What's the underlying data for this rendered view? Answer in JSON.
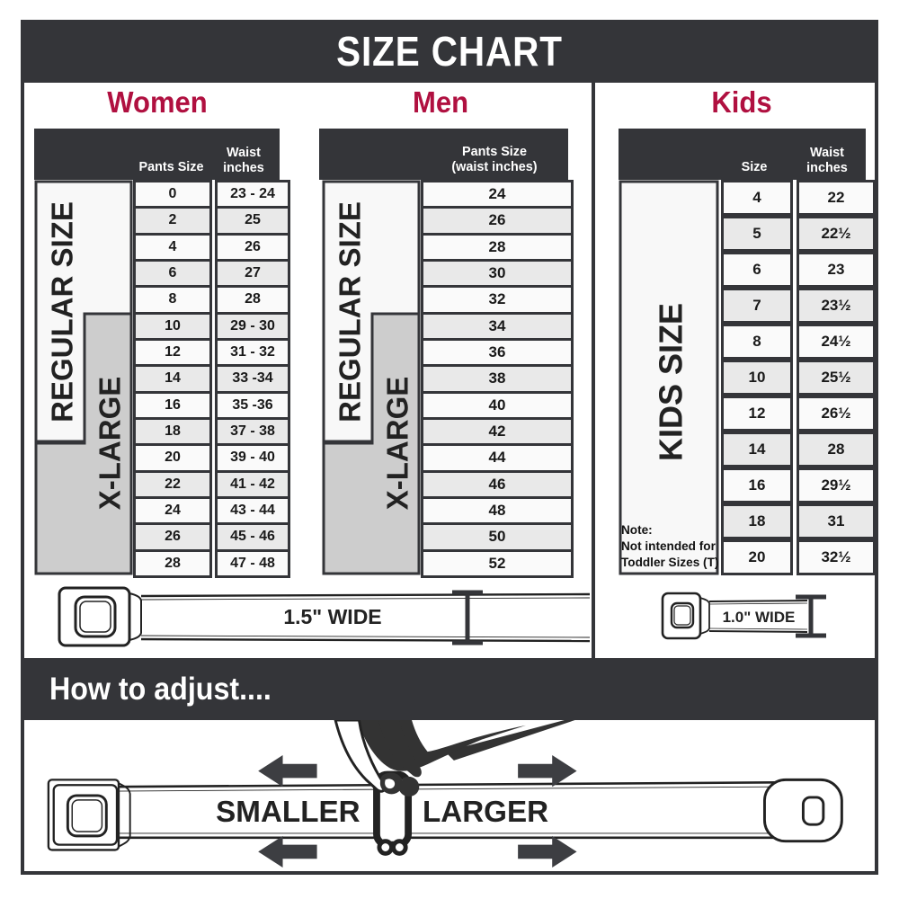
{
  "title": "SIZE CHART",
  "colors": {
    "dark_bar": "#343539",
    "heading_red": "#b01040",
    "xlarge_gray": "#cdcdcd",
    "regular_bg": "#f8f8f8",
    "row_alt": "#e9e9e9"
  },
  "women": {
    "heading": "Women",
    "regular_label": "REGULAR SIZE",
    "xlarge_label": "X-LARGE",
    "col1_header": "Pants Size",
    "col2_header_line1": "Waist",
    "col2_header_line2": "inches",
    "rows": [
      [
        "0",
        "23 - 24"
      ],
      [
        "2",
        "25"
      ],
      [
        "4",
        "26"
      ],
      [
        "6",
        "27"
      ],
      [
        "8",
        "28"
      ],
      [
        "10",
        "29 - 30"
      ],
      [
        "12",
        "31 - 32"
      ],
      [
        "14",
        "33 -34"
      ],
      [
        "16",
        "35 -36"
      ],
      [
        "18",
        "37 - 38"
      ],
      [
        "20",
        "39 - 40"
      ],
      [
        "22",
        "41 - 42"
      ],
      [
        "24",
        "43 - 44"
      ],
      [
        "26",
        "45 - 46"
      ],
      [
        "28",
        "47 - 48"
      ]
    ]
  },
  "men": {
    "heading": "Men",
    "regular_label": "REGULAR SIZE",
    "xlarge_label": "X-LARGE",
    "header_line1": "Pants Size",
    "header_line2": "(waist inches)",
    "rows": [
      [
        "24"
      ],
      [
        "26"
      ],
      [
        "28"
      ],
      [
        "30"
      ],
      [
        "32"
      ],
      [
        "34"
      ],
      [
        "36"
      ],
      [
        "38"
      ],
      [
        "40"
      ],
      [
        "42"
      ],
      [
        "44"
      ],
      [
        "46"
      ],
      [
        "48"
      ],
      [
        "50"
      ],
      [
        "52"
      ]
    ]
  },
  "kids": {
    "heading": "Kids",
    "size_label": "KIDS SIZE",
    "col1_header": "Size",
    "col2_header_line1": "Waist",
    "col2_header_line2": "inches",
    "note_line1": "Note:",
    "note_line2": "Not intended for",
    "note_line3": "Toddler Sizes (T)",
    "rows": [
      [
        "4",
        "22"
      ],
      [
        "5",
        "22½"
      ],
      [
        "6",
        "23"
      ],
      [
        "7",
        "23½"
      ],
      [
        "8",
        "24½"
      ],
      [
        "10",
        "25½"
      ],
      [
        "12",
        "26½"
      ],
      [
        "14",
        "28"
      ],
      [
        "16",
        "29½"
      ],
      [
        "18",
        "31"
      ],
      [
        "20",
        "32½"
      ]
    ]
  },
  "belts": {
    "adult_width": "1.5\" WIDE",
    "kids_width": "1.0\" WIDE"
  },
  "adjust": {
    "heading": "How to adjust....",
    "smaller": "SMALLER",
    "larger": "LARGER"
  },
  "chart_data": [
    {
      "type": "table",
      "title": "Women",
      "columns": [
        "Pants Size",
        "Waist inches"
      ],
      "rows": [
        [
          "0",
          "23 - 24"
        ],
        [
          "2",
          "25"
        ],
        [
          "4",
          "26"
        ],
        [
          "6",
          "27"
        ],
        [
          "8",
          "28"
        ],
        [
          "10",
          "29 - 30"
        ],
        [
          "12",
          "31 - 32"
        ],
        [
          "14",
          "33 -34"
        ],
        [
          "16",
          "35 -36"
        ],
        [
          "18",
          "37 - 38"
        ],
        [
          "20",
          "39 - 40"
        ],
        [
          "22",
          "41 - 42"
        ],
        [
          "24",
          "43 - 44"
        ],
        [
          "26",
          "45 - 46"
        ],
        [
          "28",
          "47 - 48"
        ]
      ],
      "groups": {
        "REGULAR SIZE": [
          "0",
          "2",
          "4",
          "6",
          "8",
          "10",
          "12",
          "14",
          "16",
          "18"
        ],
        "X-LARGE": [
          "10",
          "12",
          "14",
          "16",
          "18",
          "20",
          "22",
          "24",
          "26",
          "28"
        ]
      },
      "belt_width": "1.5\" WIDE"
    },
    {
      "type": "table",
      "title": "Men",
      "columns": [
        "Pants Size (waist inches)"
      ],
      "rows": [
        [
          "24"
        ],
        [
          "26"
        ],
        [
          "28"
        ],
        [
          "30"
        ],
        [
          "32"
        ],
        [
          "34"
        ],
        [
          "36"
        ],
        [
          "38"
        ],
        [
          "40"
        ],
        [
          "42"
        ],
        [
          "44"
        ],
        [
          "46"
        ],
        [
          "48"
        ],
        [
          "50"
        ],
        [
          "52"
        ]
      ],
      "groups": {
        "REGULAR SIZE": [
          "24",
          "26",
          "28",
          "30",
          "32",
          "34",
          "36",
          "38",
          "40",
          "42"
        ],
        "X-LARGE": [
          "34",
          "36",
          "38",
          "40",
          "42",
          "44",
          "46",
          "48",
          "50",
          "52"
        ]
      },
      "belt_width": "1.5\" WIDE"
    },
    {
      "type": "table",
      "title": "Kids",
      "columns": [
        "Size",
        "Waist inches"
      ],
      "rows": [
        [
          "4",
          "22"
        ],
        [
          "5",
          "22½"
        ],
        [
          "6",
          "23"
        ],
        [
          "7",
          "23½"
        ],
        [
          "8",
          "24½"
        ],
        [
          "10",
          "25½"
        ],
        [
          "12",
          "26½"
        ],
        [
          "14",
          "28"
        ],
        [
          "16",
          "29½"
        ],
        [
          "18",
          "31"
        ],
        [
          "20",
          "32½"
        ]
      ],
      "groups": {
        "KIDS SIZE": [
          "4",
          "5",
          "6",
          "7",
          "8",
          "10",
          "12",
          "14",
          "16",
          "18",
          "20"
        ]
      },
      "note": "Note: Not intended for Toddler Sizes (T)",
      "belt_width": "1.0\" WIDE"
    }
  ]
}
